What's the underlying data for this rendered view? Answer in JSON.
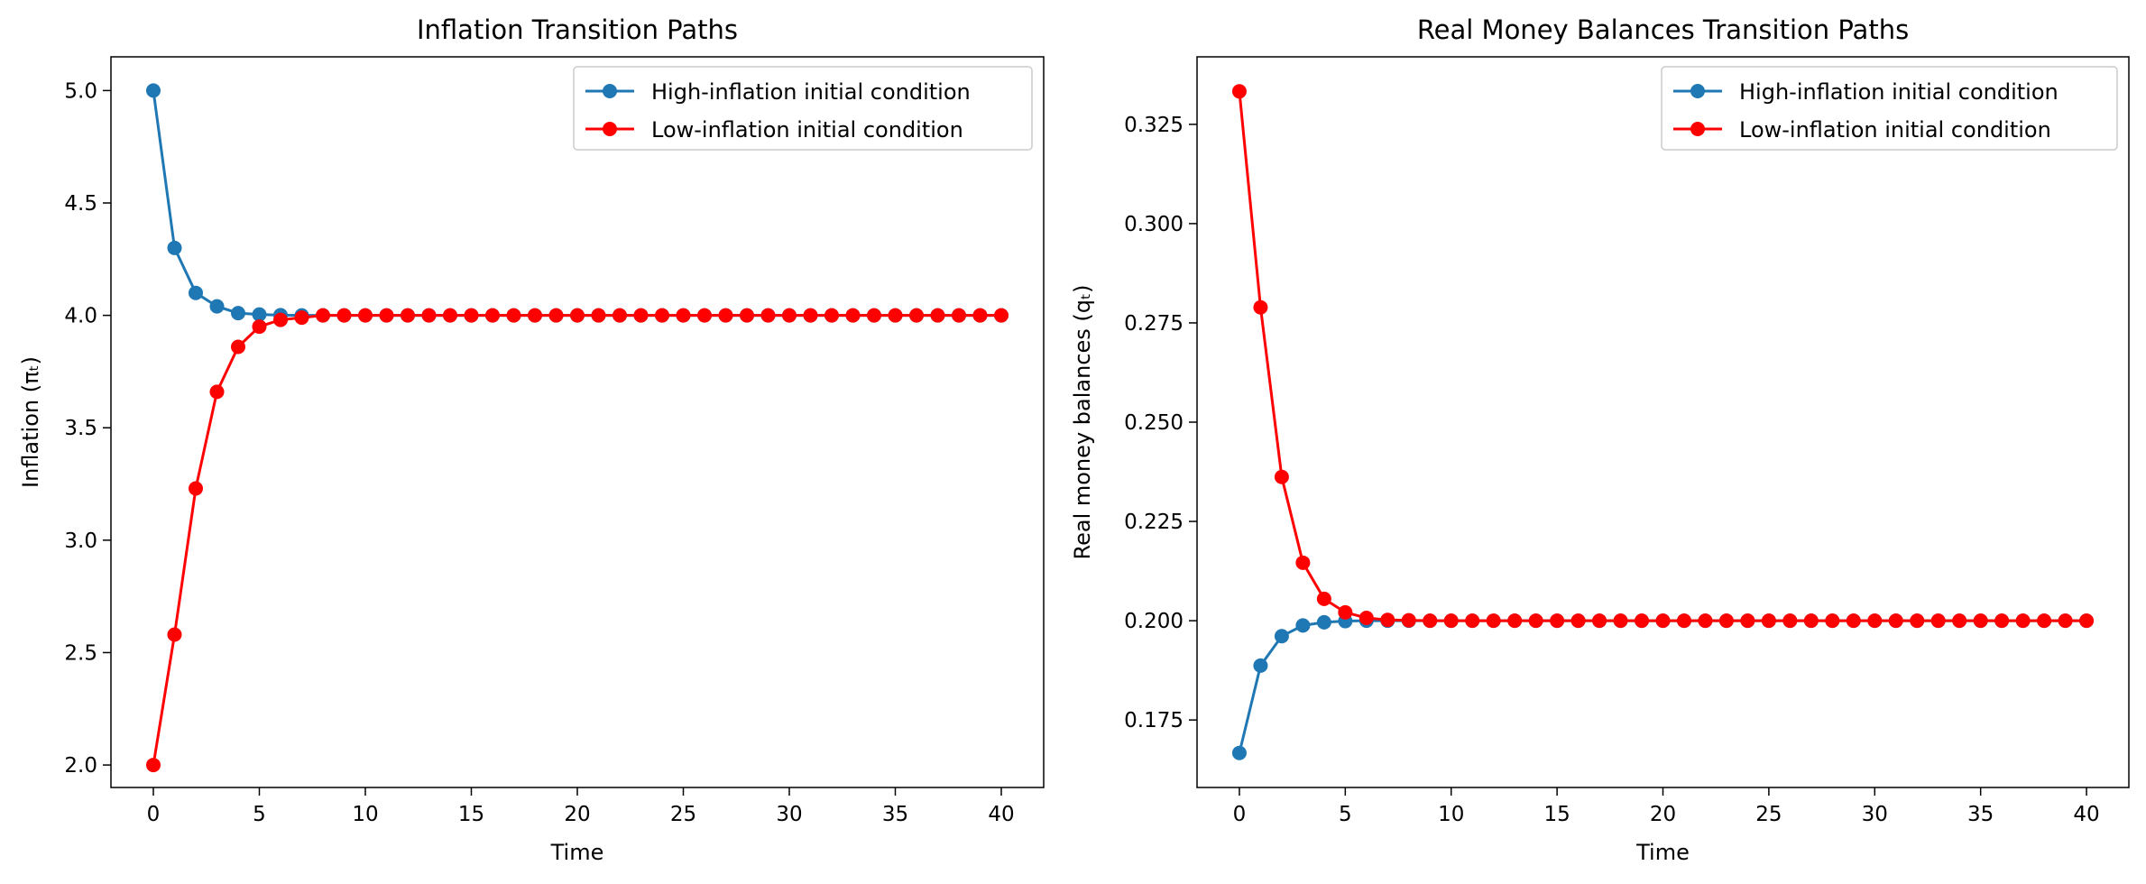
{
  "chart_data": [
    {
      "type": "line",
      "title": "Inflation Transition Paths",
      "xlabel": "Time",
      "ylabel": "Inflation (πₜ)",
      "xlim": [
        -2,
        42
      ],
      "ylim": [
        1.9,
        5.15
      ],
      "xticks": [
        0,
        5,
        10,
        15,
        20,
        25,
        30,
        35,
        40
      ],
      "yticks": [
        2.0,
        2.5,
        3.0,
        3.5,
        4.0,
        4.5,
        5.0
      ],
      "ytick_decimals": 1,
      "legend": "top-right",
      "grid": false,
      "series": [
        {
          "name": "High-inflation initial condition",
          "color": "#1f77b4",
          "x": [
            0,
            1,
            2,
            3,
            4,
            5,
            6,
            7,
            8,
            9,
            10,
            11,
            12,
            13,
            14,
            15,
            16,
            17,
            18,
            19,
            20,
            21,
            22,
            23,
            24,
            25,
            26,
            27,
            28,
            29,
            30,
            31,
            32,
            33,
            34,
            35,
            36,
            37,
            38,
            39,
            40
          ],
          "values": [
            5.0,
            4.3,
            4.1,
            4.04,
            4.01,
            4.004,
            4.001,
            4.0,
            4.0,
            4.0,
            4.0,
            4.0,
            4.0,
            4.0,
            4.0,
            4.0,
            4.0,
            4.0,
            4.0,
            4.0,
            4.0,
            4.0,
            4.0,
            4.0,
            4.0,
            4.0,
            4.0,
            4.0,
            4.0,
            4.0,
            4.0,
            4.0,
            4.0,
            4.0,
            4.0,
            4.0,
            4.0,
            4.0,
            4.0,
            4.0,
            4.0
          ]
        },
        {
          "name": "Low-inflation initial condition",
          "color": "#ff0000",
          "x": [
            0,
            1,
            2,
            3,
            4,
            5,
            6,
            7,
            8,
            9,
            10,
            11,
            12,
            13,
            14,
            15,
            16,
            17,
            18,
            19,
            20,
            21,
            22,
            23,
            24,
            25,
            26,
            27,
            28,
            29,
            30,
            31,
            32,
            33,
            34,
            35,
            36,
            37,
            38,
            39,
            40
          ],
          "values": [
            2.0,
            2.58,
            3.23,
            3.66,
            3.86,
            3.95,
            3.98,
            3.99,
            4.0,
            4.0,
            4.0,
            4.0,
            4.0,
            4.0,
            4.0,
            4.0,
            4.0,
            4.0,
            4.0,
            4.0,
            4.0,
            4.0,
            4.0,
            4.0,
            4.0,
            4.0,
            4.0,
            4.0,
            4.0,
            4.0,
            4.0,
            4.0,
            4.0,
            4.0,
            4.0,
            4.0,
            4.0,
            4.0,
            4.0,
            4.0,
            4.0
          ]
        }
      ]
    },
    {
      "type": "line",
      "title": "Real Money Balances Transition Paths",
      "xlabel": "Time",
      "ylabel": "Real money balances (qₜ)",
      "xlim": [
        -2,
        42
      ],
      "ylim": [
        0.158,
        0.342
      ],
      "xticks": [
        0,
        5,
        10,
        15,
        20,
        25,
        30,
        35,
        40
      ],
      "yticks": [
        0.175,
        0.2,
        0.225,
        0.25,
        0.275,
        0.3,
        0.325
      ],
      "ytick_decimals": 3,
      "legend": "top-right",
      "grid": false,
      "series": [
        {
          "name": "High-inflation initial condition",
          "color": "#1f77b4",
          "x": [
            0,
            1,
            2,
            3,
            4,
            5,
            6,
            7,
            8,
            9,
            10,
            11,
            12,
            13,
            14,
            15,
            16,
            17,
            18,
            19,
            20,
            21,
            22,
            23,
            24,
            25,
            26,
            27,
            28,
            29,
            30,
            31,
            32,
            33,
            34,
            35,
            36,
            37,
            38,
            39,
            40
          ],
          "values": [
            0.1667,
            0.1887,
            0.1961,
            0.1988,
            0.1996,
            0.1999,
            0.2,
            0.2,
            0.2,
            0.2,
            0.2,
            0.2,
            0.2,
            0.2,
            0.2,
            0.2,
            0.2,
            0.2,
            0.2,
            0.2,
            0.2,
            0.2,
            0.2,
            0.2,
            0.2,
            0.2,
            0.2,
            0.2,
            0.2,
            0.2,
            0.2,
            0.2,
            0.2,
            0.2,
            0.2,
            0.2,
            0.2,
            0.2,
            0.2,
            0.2,
            0.2
          ]
        },
        {
          "name": "Low-inflation initial condition",
          "color": "#ff0000",
          "x": [
            0,
            1,
            2,
            3,
            4,
            5,
            6,
            7,
            8,
            9,
            10,
            11,
            12,
            13,
            14,
            15,
            16,
            17,
            18,
            19,
            20,
            21,
            22,
            23,
            24,
            25,
            26,
            27,
            28,
            29,
            30,
            31,
            32,
            33,
            34,
            35,
            36,
            37,
            38,
            39,
            40
          ],
          "values": [
            0.3333,
            0.2789,
            0.2362,
            0.2146,
            0.2055,
            0.2021,
            0.2007,
            0.2002,
            0.2001,
            0.2,
            0.2,
            0.2,
            0.2,
            0.2,
            0.2,
            0.2,
            0.2,
            0.2,
            0.2,
            0.2,
            0.2,
            0.2,
            0.2,
            0.2,
            0.2,
            0.2,
            0.2,
            0.2,
            0.2,
            0.2,
            0.2,
            0.2,
            0.2,
            0.2,
            0.2,
            0.2,
            0.2,
            0.2,
            0.2,
            0.2,
            0.2
          ]
        }
      ]
    }
  ]
}
